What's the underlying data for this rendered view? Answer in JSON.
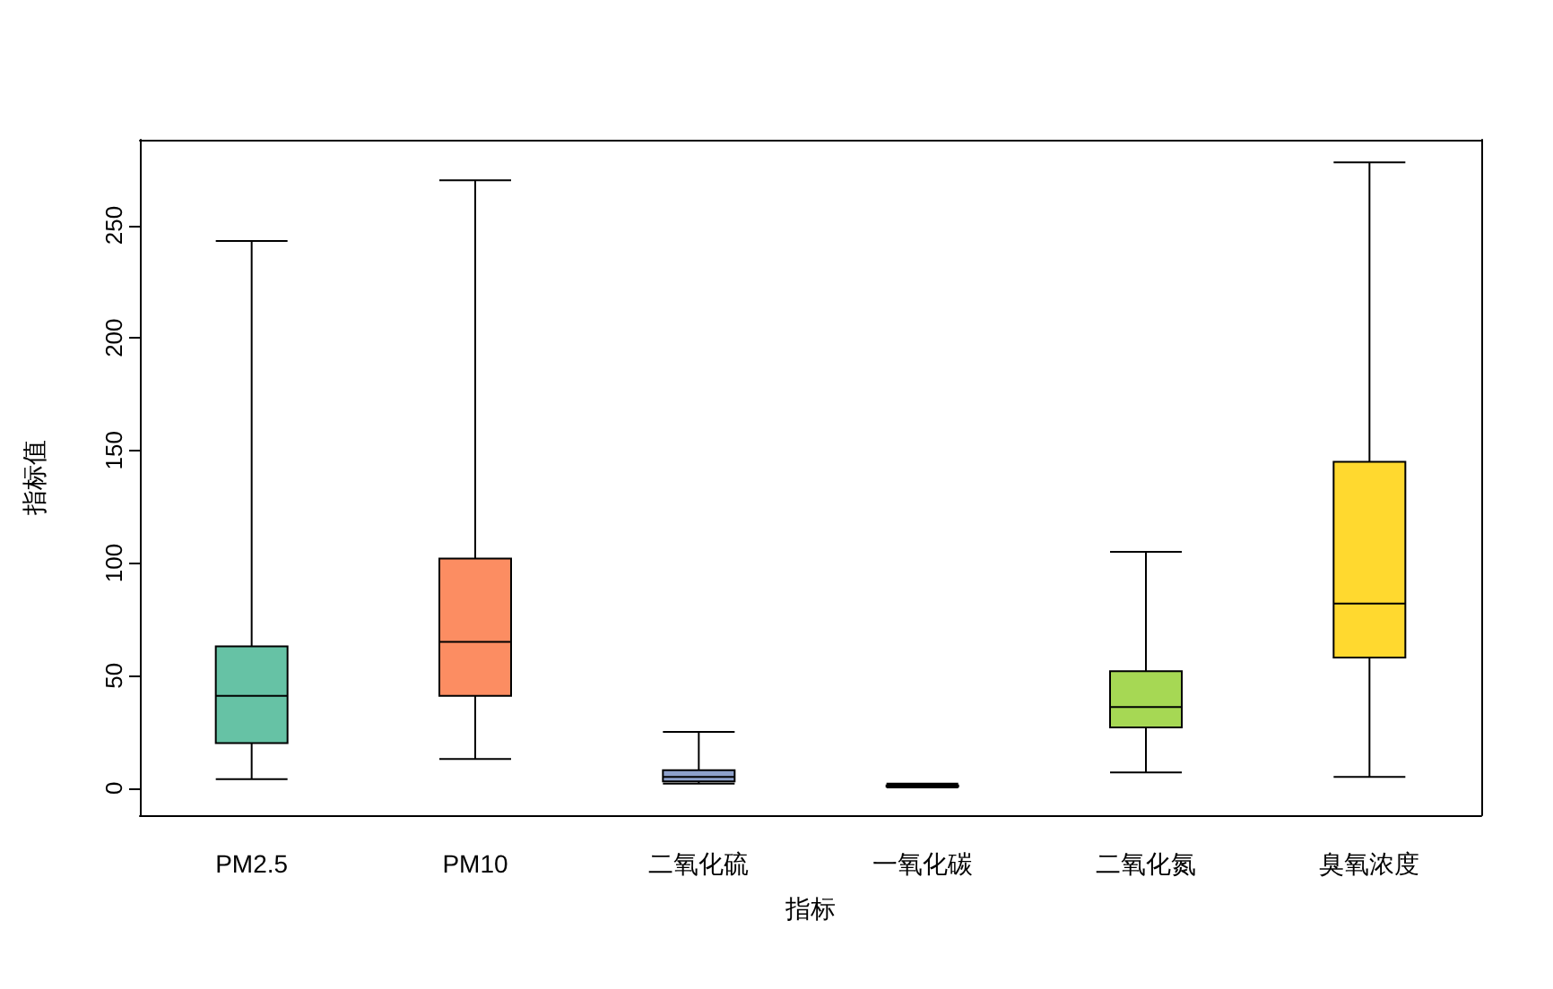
{
  "chart_data": {
    "type": "box",
    "xlabel": "指标",
    "ylabel": "指标值",
    "categories": [
      "PM2.5",
      "PM10",
      "二氧化硫",
      "一氧化碳",
      "二氧化氮",
      "臭氧浓度"
    ],
    "colors": [
      "#66c2a5",
      "#fc8d62",
      "#8da0cb",
      "#e78ac3",
      "#a6d854",
      "#ffd92f"
    ],
    "boxes": [
      {
        "low": 4,
        "q1": 20,
        "median": 41,
        "q3": 63,
        "high": 243
      },
      {
        "low": 13,
        "q1": 41,
        "median": 65,
        "q3": 102,
        "high": 270
      },
      {
        "low": 2,
        "q1": 3,
        "median": 5,
        "q3": 8,
        "high": 25
      },
      {
        "low": 0.3,
        "q1": 0.7,
        "median": 1,
        "q3": 1.2,
        "high": 2
      },
      {
        "low": 7,
        "q1": 27,
        "median": 36,
        "q3": 52,
        "high": 105
      },
      {
        "low": 5,
        "q1": 58,
        "median": 82,
        "q3": 145,
        "high": 278
      }
    ],
    "ylim": [
      -12,
      288
    ],
    "yticks": [
      0,
      50,
      100,
      150,
      200,
      250
    ],
    "grid": false
  }
}
